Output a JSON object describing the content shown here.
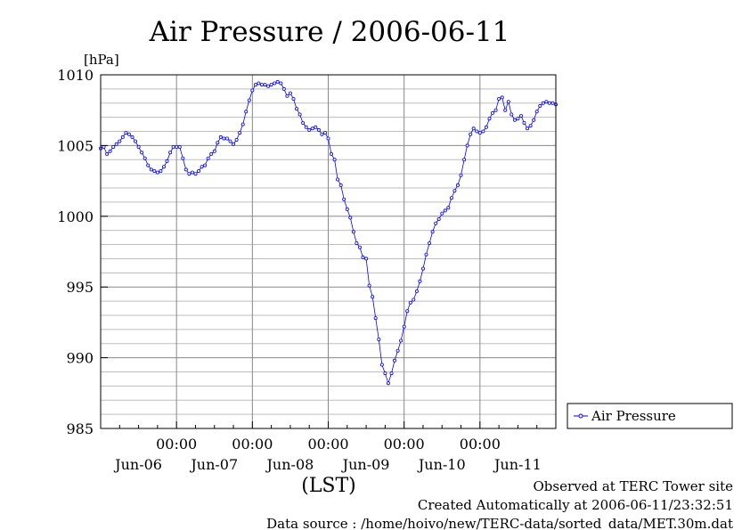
{
  "chart_data": {
    "type": "line",
    "title": "Air Pressure / 2006-06-11",
    "ylabel": "[hPa]",
    "xlabel": "(LST)",
    "ylim": [
      985,
      1010
    ],
    "yticks": [
      985,
      990,
      995,
      1000,
      1005,
      1010
    ],
    "ytick_labels": [
      "985",
      "990",
      "995",
      "1000",
      "1005",
      "1010"
    ],
    "xlim_hours": [
      0,
      144
    ],
    "x_unit": "hours from 2006-06-06 00:00",
    "x_time_ticks": [
      {
        "hour": 24,
        "label": "00:00"
      },
      {
        "hour": 48,
        "label": "00:00"
      },
      {
        "hour": 72,
        "label": "00:00"
      },
      {
        "hour": 96,
        "label": "00:00"
      },
      {
        "hour": 120,
        "label": "00:00"
      }
    ],
    "x_day_labels": [
      {
        "hour": 12,
        "label": "Jun-06"
      },
      {
        "hour": 36,
        "label": "Jun-07"
      },
      {
        "hour": 60,
        "label": "Jun-08"
      },
      {
        "hour": 84,
        "label": "Jun-09"
      },
      {
        "hour": 108,
        "label": "Jun-10"
      },
      {
        "hour": 132,
        "label": "Jun-11"
      }
    ],
    "grid": true,
    "legend_position": "right",
    "series": [
      {
        "name": "Air Pressure",
        "color": "#0000ff",
        "marker": "open-circle",
        "points": [
          [
            0,
            1004.8
          ],
          [
            1,
            1004.9
          ],
          [
            2,
            1004.4
          ],
          [
            3,
            1004.6
          ],
          [
            4,
            1004.9
          ],
          [
            5,
            1005.1
          ],
          [
            6,
            1005.3
          ],
          [
            7,
            1005.6
          ],
          [
            8,
            1005.9
          ],
          [
            9,
            1005.8
          ],
          [
            10,
            1005.6
          ],
          [
            11,
            1005.3
          ],
          [
            12,
            1004.9
          ],
          [
            13,
            1004.5
          ],
          [
            14,
            1004.1
          ],
          [
            15,
            1003.6
          ],
          [
            16,
            1003.3
          ],
          [
            17,
            1003.2
          ],
          [
            18,
            1003.1
          ],
          [
            19,
            1003.2
          ],
          [
            20,
            1003.5
          ],
          [
            21,
            1003.9
          ],
          [
            22,
            1004.5
          ],
          [
            23,
            1004.9
          ],
          [
            24,
            1004.9
          ],
          [
            25,
            1004.9
          ],
          [
            26,
            1004.1
          ],
          [
            27,
            1003.3
          ],
          [
            28,
            1003.0
          ],
          [
            29,
            1003.1
          ],
          [
            30,
            1003.0
          ],
          [
            31,
            1003.2
          ],
          [
            32,
            1003.5
          ],
          [
            33,
            1003.6
          ],
          [
            34,
            1004.1
          ],
          [
            35,
            1004.4
          ],
          [
            36,
            1004.6
          ],
          [
            37,
            1005.2
          ],
          [
            38,
            1005.6
          ],
          [
            39,
            1005.5
          ],
          [
            40,
            1005.5
          ],
          [
            41,
            1005.3
          ],
          [
            42,
            1005.1
          ],
          [
            43,
            1005.4
          ],
          [
            44,
            1005.9
          ],
          [
            45,
            1006.5
          ],
          [
            46,
            1007.4
          ],
          [
            47,
            1008.2
          ],
          [
            48,
            1008.9
          ],
          [
            49,
            1009.3
          ],
          [
            50,
            1009.4
          ],
          [
            51,
            1009.3
          ],
          [
            52,
            1009.3
          ],
          [
            53,
            1009.2
          ],
          [
            54,
            1009.3
          ],
          [
            55,
            1009.4
          ],
          [
            56,
            1009.5
          ],
          [
            57,
            1009.4
          ],
          [
            58,
            1009.0
          ],
          [
            59,
            1008.5
          ],
          [
            60,
            1008.7
          ],
          [
            61,
            1008.3
          ],
          [
            62,
            1007.6
          ],
          [
            63,
            1007.2
          ],
          [
            64,
            1006.6
          ],
          [
            65,
            1006.3
          ],
          [
            66,
            1006.1
          ],
          [
            67,
            1006.2
          ],
          [
            68,
            1006.3
          ],
          [
            69,
            1006.1
          ],
          [
            70,
            1005.8
          ],
          [
            71,
            1005.9
          ],
          [
            72,
            1005.5
          ],
          [
            73,
            1004.4
          ],
          [
            74,
            1004.0
          ],
          [
            75,
            1002.6
          ],
          [
            76,
            1002.2
          ],
          [
            77,
            1001.2
          ],
          [
            78,
            1000.5
          ],
          [
            79,
            999.9
          ],
          [
            80,
            998.9
          ],
          [
            81,
            998.1
          ],
          [
            82,
            997.8
          ],
          [
            83,
            997.1
          ],
          [
            84,
            997.0
          ],
          [
            85,
            995.1
          ],
          [
            86,
            994.3
          ],
          [
            87,
            992.8
          ],
          [
            88,
            991.3
          ],
          [
            89,
            989.5
          ],
          [
            90,
            988.9
          ],
          [
            91,
            988.2
          ],
          [
            92,
            988.9
          ],
          [
            93,
            989.8
          ],
          [
            94,
            990.5
          ],
          [
            95,
            991.2
          ],
          [
            96,
            992.2
          ],
          [
            97,
            993.3
          ],
          [
            98,
            993.9
          ],
          [
            99,
            994.1
          ],
          [
            100,
            994.7
          ],
          [
            101,
            995.4
          ],
          [
            102,
            996.3
          ],
          [
            103,
            997.3
          ],
          [
            104,
            998.1
          ],
          [
            105,
            998.9
          ],
          [
            106,
            999.5
          ],
          [
            107,
            999.8
          ],
          [
            108,
            1000.2
          ],
          [
            109,
            1000.4
          ],
          [
            110,
            1000.6
          ],
          [
            111,
            1001.3
          ],
          [
            112,
            1001.8
          ],
          [
            113,
            1002.2
          ],
          [
            114,
            1002.9
          ],
          [
            115,
            1004.0
          ],
          [
            116,
            1005.0
          ],
          [
            117,
            1005.8
          ],
          [
            118,
            1006.2
          ],
          [
            119,
            1006.0
          ],
          [
            120,
            1005.9
          ],
          [
            121,
            1006.0
          ],
          [
            122,
            1006.3
          ],
          [
            123,
            1006.9
          ],
          [
            124,
            1007.3
          ],
          [
            125,
            1007.5
          ],
          [
            126,
            1008.3
          ],
          [
            127,
            1008.4
          ],
          [
            128,
            1007.5
          ],
          [
            129,
            1008.1
          ],
          [
            130,
            1007.2
          ],
          [
            131,
            1006.8
          ],
          [
            132,
            1006.9
          ],
          [
            133,
            1007.1
          ],
          [
            134,
            1006.6
          ],
          [
            135,
            1006.2
          ],
          [
            136,
            1006.4
          ],
          [
            137,
            1006.8
          ],
          [
            138,
            1007.4
          ],
          [
            139,
            1007.8
          ],
          [
            140,
            1008.0
          ],
          [
            141,
            1008.1
          ],
          [
            142,
            1008.0
          ],
          [
            143,
            1008.0
          ],
          [
            144,
            1007.9
          ]
        ]
      }
    ]
  },
  "footer": {
    "line1": "Observed at TERC Tower site",
    "line2": "Created Automatically at 2006-06-11/23:32:51",
    "line3": "Data source : /home/hoivo/new/TERC-data/sorted_data/MET.30m.dat"
  }
}
